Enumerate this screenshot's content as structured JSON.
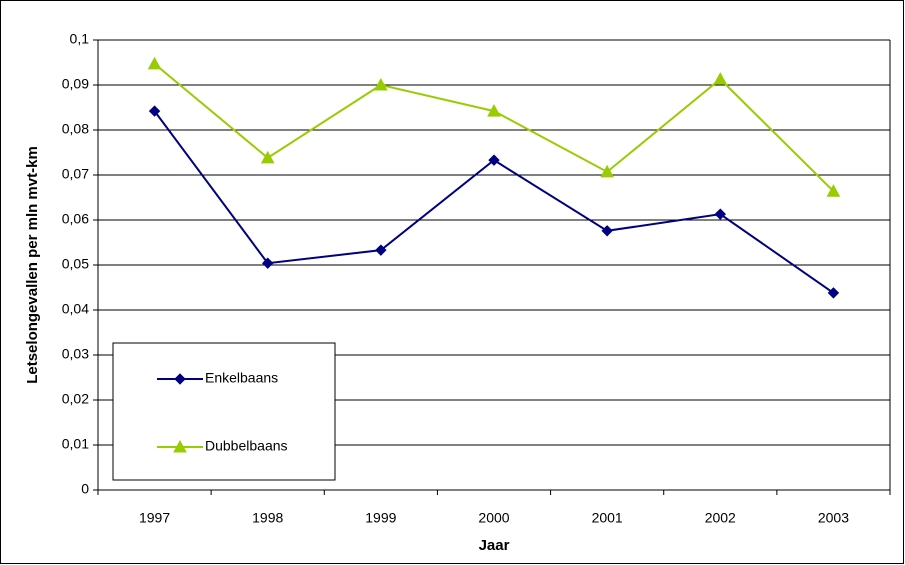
{
  "chart_data": {
    "type": "line",
    "x_label": "Jaar",
    "y_label": "Letselongevallen per mln mvt-km",
    "categories": [
      "1997",
      "1998",
      "1999",
      "2000",
      "2001",
      "2002",
      "2003"
    ],
    "series": [
      {
        "name": "Enkelbaans",
        "color": "#000080",
        "marker": "diamond",
        "values": [
          0.0842,
          0.0504,
          0.0533,
          0.0733,
          0.0576,
          0.0613,
          0.0438
        ]
      },
      {
        "name": "Dubbelbaans",
        "color": "#99cc00",
        "marker": "triangle",
        "values": [
          0.0947,
          0.0738,
          0.09,
          0.0842,
          0.0707,
          0.0913,
          0.0664
        ]
      }
    ],
    "ylim": [
      0,
      0.1
    ],
    "yticks": [
      0,
      {
        "value": 0.01,
        "label": "0,01"
      },
      {
        "value": 0.02,
        "label": "0,02"
      },
      {
        "value": 0.03,
        "label": "0,03"
      },
      {
        "value": 0.04,
        "label": "0,04"
      },
      {
        "value": 0.05,
        "label": "0,05"
      },
      {
        "value": 0.06,
        "label": "0,06"
      },
      {
        "value": 0.07,
        "label": "0,07"
      },
      {
        "value": 0.08,
        "label": "0,08"
      },
      {
        "value": 0.09,
        "label": "0,09"
      },
      {
        "value": 0.1,
        "label": "0,1"
      }
    ],
    "grid": true,
    "legend": "lower-left"
  }
}
